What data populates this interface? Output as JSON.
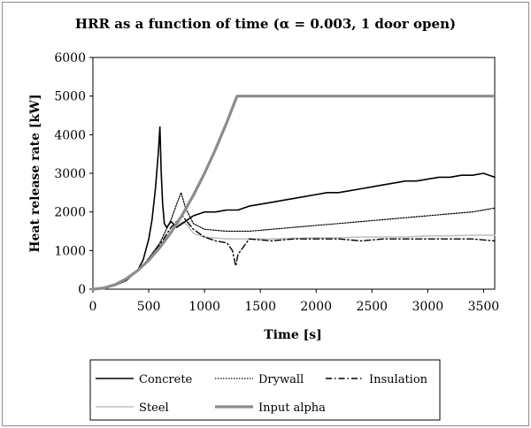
{
  "chart_data": {
    "type": "line",
    "title": "HRR as a function of time (α = 0.003, 1 door open)",
    "xlabel": "Time [s]",
    "ylabel": "Heat release rate [kW]",
    "xlim": [
      0,
      3600
    ],
    "ylim": [
      0,
      6000
    ],
    "xticks": [
      0,
      500,
      1000,
      1500,
      2000,
      2500,
      3000,
      3500
    ],
    "yticks": [
      0,
      1000,
      2000,
      3000,
      4000,
      5000,
      6000
    ],
    "grid": false,
    "legend_position": "bottom",
    "series": [
      {
        "name": "Concrete",
        "color": "#000000",
        "style": "solid",
        "points": [
          [
            0,
            0
          ],
          [
            100,
            20
          ],
          [
            200,
            100
          ],
          [
            300,
            230
          ],
          [
            400,
            480
          ],
          [
            450,
            760
          ],
          [
            500,
            1300
          ],
          [
            530,
            1800
          ],
          [
            560,
            2600
          ],
          [
            585,
            3500
          ],
          [
            600,
            4200
          ],
          [
            612,
            3000
          ],
          [
            625,
            2200
          ],
          [
            640,
            1700
          ],
          [
            660,
            1600
          ],
          [
            700,
            1750
          ],
          [
            750,
            1600
          ],
          [
            800,
            1700
          ],
          [
            850,
            1800
          ],
          [
            900,
            1900
          ],
          [
            1000,
            2000
          ],
          [
            1100,
            2000
          ],
          [
            1200,
            2050
          ],
          [
            1300,
            2050
          ],
          [
            1400,
            2150
          ],
          [
            1500,
            2200
          ],
          [
            1600,
            2250
          ],
          [
            1700,
            2300
          ],
          [
            1800,
            2350
          ],
          [
            1900,
            2400
          ],
          [
            2000,
            2450
          ],
          [
            2100,
            2500
          ],
          [
            2200,
            2500
          ],
          [
            2300,
            2550
          ],
          [
            2400,
            2600
          ],
          [
            2500,
            2650
          ],
          [
            2600,
            2700
          ],
          [
            2700,
            2750
          ],
          [
            2800,
            2800
          ],
          [
            2900,
            2800
          ],
          [
            3000,
            2850
          ],
          [
            3100,
            2900
          ],
          [
            3200,
            2900
          ],
          [
            3300,
            2950
          ],
          [
            3400,
            2950
          ],
          [
            3500,
            3000
          ],
          [
            3600,
            2900
          ]
        ]
      },
      {
        "name": "Drywall",
        "color": "#000000",
        "style": "dotted",
        "points": [
          [
            0,
            0
          ],
          [
            200,
            100
          ],
          [
            400,
            460
          ],
          [
            500,
            800
          ],
          [
            600,
            1200
          ],
          [
            700,
            1800
          ],
          [
            750,
            2200
          ],
          [
            790,
            2500
          ],
          [
            830,
            2100
          ],
          [
            900,
            1700
          ],
          [
            1000,
            1550
          ],
          [
            1200,
            1500
          ],
          [
            1400,
            1500
          ],
          [
            1600,
            1550
          ],
          [
            1800,
            1600
          ],
          [
            2000,
            1650
          ],
          [
            2200,
            1700
          ],
          [
            2400,
            1750
          ],
          [
            2600,
            1800
          ],
          [
            2800,
            1850
          ],
          [
            3000,
            1900
          ],
          [
            3200,
            1950
          ],
          [
            3400,
            2000
          ],
          [
            3600,
            2100
          ]
        ]
      },
      {
        "name": "Insulation",
        "color": "#000000",
        "style": "dashdot",
        "points": [
          [
            0,
            0
          ],
          [
            200,
            100
          ],
          [
            400,
            460
          ],
          [
            500,
            800
          ],
          [
            600,
            1150
          ],
          [
            700,
            1600
          ],
          [
            800,
            1900
          ],
          [
            900,
            1550
          ],
          [
            1000,
            1350
          ],
          [
            1100,
            1250
          ],
          [
            1200,
            1200
          ],
          [
            1250,
            1000
          ],
          [
            1280,
            600
          ],
          [
            1300,
            900
          ],
          [
            1400,
            1300
          ],
          [
            1600,
            1250
          ],
          [
            1800,
            1300
          ],
          [
            2000,
            1300
          ],
          [
            2200,
            1300
          ],
          [
            2400,
            1250
          ],
          [
            2600,
            1300
          ],
          [
            2800,
            1300
          ],
          [
            3000,
            1300
          ],
          [
            3200,
            1300
          ],
          [
            3400,
            1300
          ],
          [
            3600,
            1250
          ]
        ]
      },
      {
        "name": "Steel",
        "color": "#c0c0c0",
        "style": "solid",
        "points": [
          [
            0,
            0
          ],
          [
            200,
            100
          ],
          [
            400,
            460
          ],
          [
            500,
            780
          ],
          [
            600,
            1120
          ],
          [
            700,
            1500
          ],
          [
            800,
            1750
          ],
          [
            850,
            1650
          ],
          [
            900,
            1450
          ],
          [
            1000,
            1350
          ],
          [
            1200,
            1300
          ],
          [
            1400,
            1300
          ],
          [
            1600,
            1300
          ],
          [
            1800,
            1320
          ],
          [
            2000,
            1330
          ],
          [
            2200,
            1330
          ],
          [
            2400,
            1350
          ],
          [
            2600,
            1350
          ],
          [
            2800,
            1350
          ],
          [
            3000,
            1380
          ],
          [
            3200,
            1380
          ],
          [
            3400,
            1400
          ],
          [
            3600,
            1400
          ]
        ]
      },
      {
        "name": "Input alpha",
        "color": "#8c8c8c",
        "style": "thick",
        "points": [
          [
            0,
            0
          ],
          [
            100,
            30
          ],
          [
            200,
            120
          ],
          [
            300,
            270
          ],
          [
            400,
            480
          ],
          [
            500,
            750
          ],
          [
            600,
            1080
          ],
          [
            700,
            1470
          ],
          [
            800,
            1920
          ],
          [
            900,
            2430
          ],
          [
            1000,
            3000
          ],
          [
            1100,
            3630
          ],
          [
            1200,
            4320
          ],
          [
            1291,
            5000
          ],
          [
            3600,
            5000
          ]
        ]
      }
    ]
  }
}
